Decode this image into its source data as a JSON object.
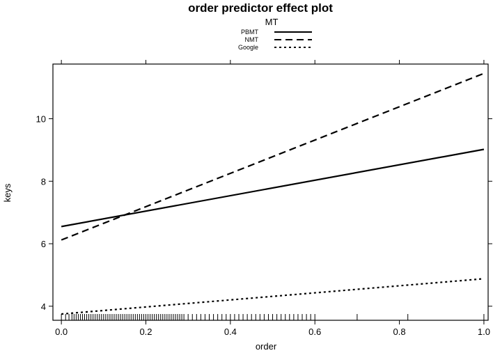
{
  "chart_data": {
    "type": "line",
    "title": "order predictor effect plot",
    "xlabel": "order",
    "ylabel": "keys",
    "xlim": [
      -0.02,
      1.01
    ],
    "ylim": [
      3.55,
      11.75
    ],
    "xticks": [
      0.0,
      0.2,
      0.4,
      0.6,
      0.8,
      1.0
    ],
    "xtick_labels": [
      "0.0",
      "0.2",
      "0.4",
      "0.6",
      "0.8",
      "1.0"
    ],
    "yticks": [
      4,
      6,
      8,
      10
    ],
    "ytick_labels": [
      "4",
      "6",
      "8",
      "10"
    ],
    "grid": false,
    "legend": {
      "title": "MT",
      "placement": "top-center"
    },
    "series": [
      {
        "name": "PBMT",
        "style": "solid",
        "x": [
          0.0,
          1.0
        ],
        "y": [
          6.55,
          9.02
        ]
      },
      {
        "name": "NMT",
        "style": "dashed",
        "x": [
          0.0,
          1.0
        ],
        "y": [
          6.12,
          11.45
        ]
      },
      {
        "name": "Google",
        "style": "dotted",
        "x": [
          0.0,
          1.0
        ],
        "y": [
          3.75,
          4.88
        ]
      }
    ],
    "rug": [
      0.0,
      0.01,
      0.018,
      0.025,
      0.03,
      0.035,
      0.04,
      0.045,
      0.05,
      0.055,
      0.06,
      0.065,
      0.07,
      0.075,
      0.08,
      0.085,
      0.09,
      0.095,
      0.1,
      0.105,
      0.11,
      0.115,
      0.12,
      0.125,
      0.13,
      0.135,
      0.14,
      0.145,
      0.15,
      0.155,
      0.16,
      0.165,
      0.17,
      0.175,
      0.18,
      0.185,
      0.19,
      0.195,
      0.2,
      0.205,
      0.21,
      0.215,
      0.22,
      0.225,
      0.23,
      0.235,
      0.24,
      0.245,
      0.25,
      0.255,
      0.26,
      0.265,
      0.27,
      0.275,
      0.28,
      0.285,
      0.29,
      0.3,
      0.31,
      0.32,
      0.33,
      0.34,
      0.35,
      0.36,
      0.37,
      0.38,
      0.39,
      0.4,
      0.41,
      0.42,
      0.43,
      0.44,
      0.45,
      0.46,
      0.47,
      0.48,
      0.49,
      0.5,
      0.51,
      0.52,
      0.53,
      0.54,
      0.55,
      0.56,
      0.57,
      0.58,
      0.59,
      0.6,
      0.7,
      0.82,
      1.0
    ]
  }
}
